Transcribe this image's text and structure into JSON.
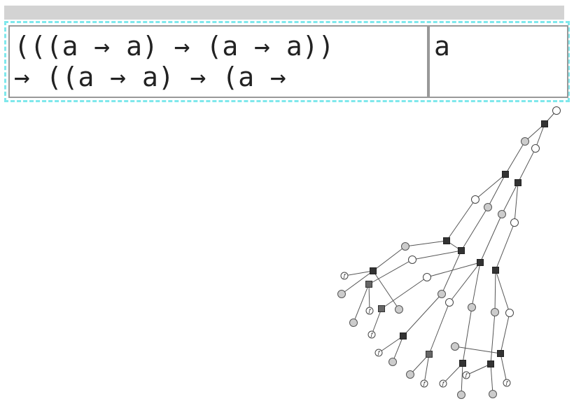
{
  "formula": {
    "lines": [
      "(((a → a) → (a → a))",
      "→ ((a → a) → (a →"
    ],
    "result": "a"
  },
  "graph": {
    "leaf_labels": [
      "f",
      "f",
      "f",
      "f",
      "f",
      "f",
      "f",
      "f"
    ]
  }
}
